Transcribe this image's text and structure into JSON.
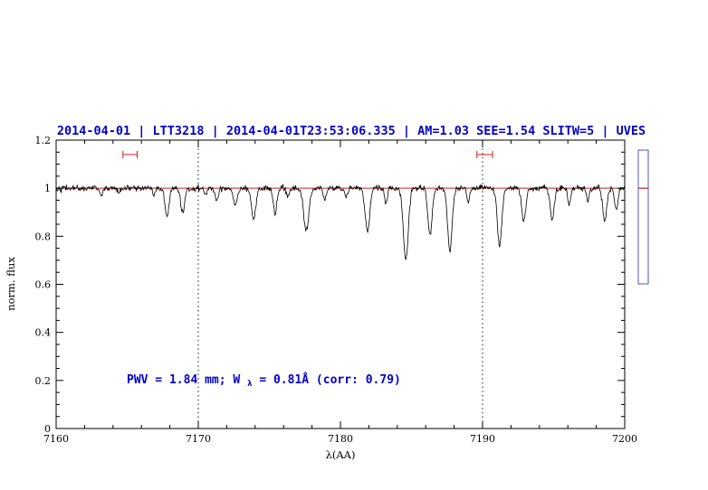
{
  "chart_data": {
    "type": "line",
    "title": "2014-04-01 | LTT3218 | 2014-04-01T23:53:06.335 | AM=1.03  SEE=1.54  SLITW=5 | UVES",
    "xlabel": "λ(AA)",
    "ylabel": "norm. flux",
    "xlim": [
      7160,
      7200
    ],
    "ylim": [
      0,
      1.2
    ],
    "x_ticks": [
      "7160",
      "7170",
      "7180",
      "7190",
      "7200"
    ],
    "x_minor_step": 2,
    "y_ticks": [
      "0",
      "0.2",
      "0.4",
      "0.6",
      "0.8",
      "1",
      "1.2"
    ],
    "y_minor_step": 0.05,
    "grid": "off",
    "legend": "none",
    "continuum": 1.0,
    "noise_sigma": 0.006,
    "sample_step": 0.04,
    "absorption_lines": [
      [
        7163.2,
        0.03,
        0.1
      ],
      [
        7164.4,
        0.02,
        0.1
      ],
      [
        7166.9,
        0.03,
        0.1
      ],
      [
        7167.8,
        0.12,
        0.14
      ],
      [
        7168.9,
        0.1,
        0.14
      ],
      [
        7170.5,
        0.03,
        0.1
      ],
      [
        7171.3,
        0.05,
        0.12
      ],
      [
        7172.6,
        0.07,
        0.13
      ],
      [
        7173.9,
        0.13,
        0.15
      ],
      [
        7175.4,
        0.1,
        0.14
      ],
      [
        7176.3,
        0.04,
        0.1
      ],
      [
        7177.6,
        0.18,
        0.18
      ],
      [
        7178.9,
        0.05,
        0.1
      ],
      [
        7180.4,
        0.04,
        0.1
      ],
      [
        7181.9,
        0.18,
        0.16
      ],
      [
        7183.2,
        0.06,
        0.1
      ],
      [
        7184.6,
        0.3,
        0.17
      ],
      [
        7186.3,
        0.2,
        0.15
      ],
      [
        7187.7,
        0.26,
        0.16
      ],
      [
        7189.0,
        0.06,
        0.1
      ],
      [
        7191.2,
        0.24,
        0.16
      ],
      [
        7192.9,
        0.14,
        0.14
      ],
      [
        7194.9,
        0.13,
        0.14
      ],
      [
        7196.1,
        0.07,
        0.1
      ],
      [
        7197.4,
        0.05,
        0.1
      ],
      [
        7198.6,
        0.14,
        0.14
      ],
      [
        7199.4,
        0.09,
        0.12
      ]
    ],
    "reference_line": {
      "y": 1.0
    },
    "vlines": [
      7170,
      7190
    ],
    "interval_markers": [
      {
        "x1": 7164.7,
        "x2": 7165.7,
        "y": 1.14
      },
      {
        "x1": 7189.6,
        "x2": 7190.7,
        "y": 1.14
      }
    ],
    "annotation": {
      "part1": "PWV = 1.84 mm; W",
      "sub": "λ",
      "part2": " = 0.81Å (corr: 0.79)"
    },
    "side_indicator": {
      "value": 1.0
    }
  },
  "colors": {
    "title": "#0000cd",
    "annotation": "#0000cd",
    "reference": "#cc2222",
    "marker": "#cc2222",
    "spectrum": "#000000",
    "frame": "#000000",
    "vline": "#000000",
    "box_border": "#5555bb",
    "box_tick": "#cc2222"
  }
}
